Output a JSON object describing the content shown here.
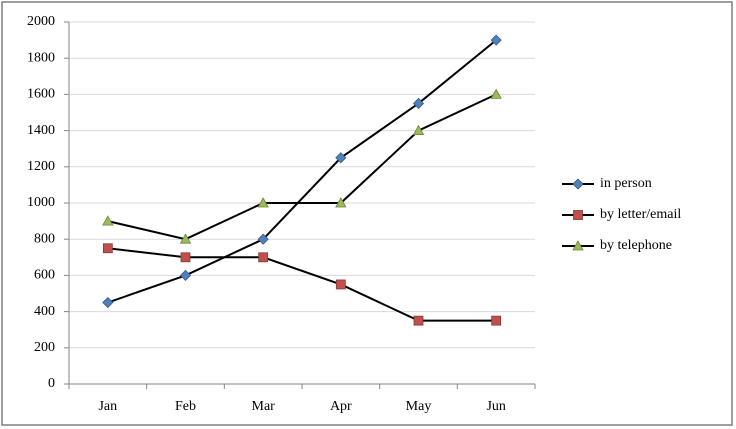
{
  "chart_data": {
    "type": "line",
    "categories": [
      "Jan",
      "Feb",
      "Mar",
      "Apr",
      "May",
      "Jun"
    ],
    "series": [
      {
        "name": "in person",
        "color": "#4f81bd",
        "marker": "diamond",
        "values": [
          450,
          600,
          800,
          1250,
          1550,
          1900
        ]
      },
      {
        "name": "by letter/email",
        "color": "#c0504d",
        "marker": "square",
        "values": [
          750,
          700,
          700,
          550,
          350,
          350
        ]
      },
      {
        "name": "by telephone",
        "color": "#9bbb59",
        "marker": "triangle",
        "values": [
          900,
          800,
          1000,
          1000,
          1400,
          1600
        ]
      }
    ],
    "line_color": "#000000",
    "ylim": [
      0,
      2000
    ],
    "yticks": [
      0,
      200,
      400,
      600,
      800,
      1000,
      1200,
      1400,
      1600,
      1800,
      2000
    ],
    "grid": true,
    "legend": "right"
  }
}
